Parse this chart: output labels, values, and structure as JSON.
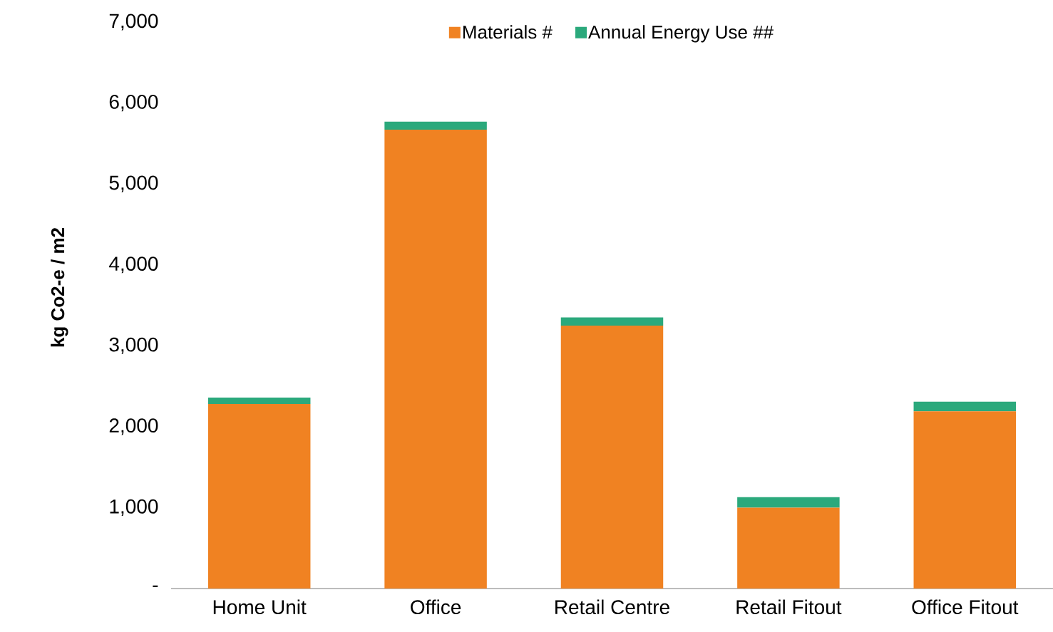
{
  "chart_data": {
    "type": "bar",
    "stacked": true,
    "ylabel": "kg Co2-e / m2",
    "categories": [
      "Home Unit",
      "Office",
      "Retail Centre",
      "Retail Fitout",
      "Office Fitout"
    ],
    "series": [
      {
        "name": "Materials #",
        "color": "#f08222",
        "values": [
          2280,
          5670,
          3250,
          1000,
          2190
        ]
      },
      {
        "name": "Annual Energy Use ##",
        "color": "#2ba97c",
        "values": [
          80,
          100,
          100,
          130,
          120
        ]
      }
    ],
    "ylim": [
      0,
      7000
    ],
    "yticks": [
      {
        "value": 0,
        "label": "-"
      },
      {
        "value": 1000,
        "label": "1,000"
      },
      {
        "value": 2000,
        "label": "2,000"
      },
      {
        "value": 3000,
        "label": "3,000"
      },
      {
        "value": 4000,
        "label": "4,000"
      },
      {
        "value": 5000,
        "label": "5,000"
      },
      {
        "value": 6000,
        "label": "6,000"
      },
      {
        "value": 7000,
        "label": "7,000"
      }
    ],
    "grid": false,
    "legend": "top"
  }
}
